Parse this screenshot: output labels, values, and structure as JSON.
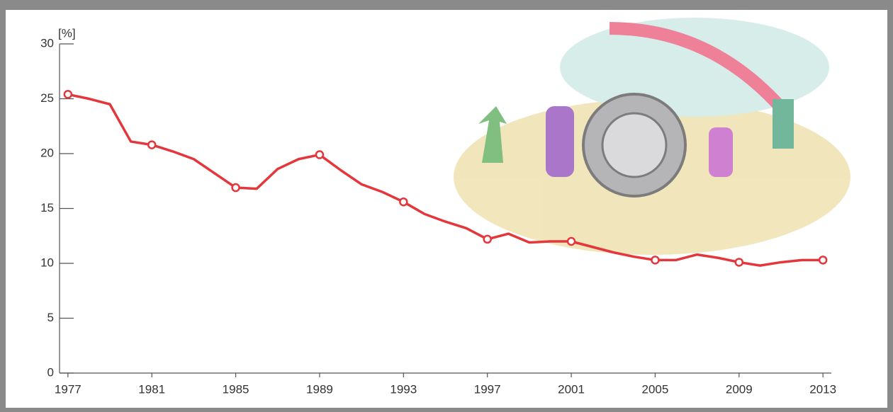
{
  "chart_data": {
    "type": "line",
    "y_label": "[%]",
    "x": [
      1977,
      1978,
      1979,
      1980,
      1981,
      1982,
      1983,
      1984,
      1985,
      1986,
      1987,
      1988,
      1989,
      1990,
      1991,
      1992,
      1993,
      1994,
      1995,
      1996,
      1997,
      1998,
      1999,
      2000,
      2001,
      2002,
      2003,
      2004,
      2005,
      2006,
      2007,
      2008,
      2009,
      2010,
      2011,
      2012,
      2013
    ],
    "values": [
      25.4,
      25.0,
      24.5,
      21.1,
      20.8,
      20.2,
      19.5,
      18.2,
      16.9,
      16.8,
      18.6,
      19.5,
      19.9,
      18.5,
      17.2,
      16.5,
      15.6,
      14.5,
      13.8,
      13.2,
      12.2,
      12.7,
      11.9,
      12.0,
      12.0,
      11.5,
      11.0,
      10.6,
      10.3,
      10.3,
      10.8,
      10.5,
      10.1,
      9.8,
      10.1,
      10.3,
      10.3
    ],
    "color": "#e4373b",
    "xlim": [
      1976.6,
      2013.4
    ],
    "xticks": [
      1977,
      1981,
      1985,
      1989,
      1993,
      1997,
      2001,
      2005,
      2009,
      2013
    ],
    "ylim": [
      0,
      30
    ],
    "yticks": [
      0,
      5,
      10,
      15,
      20,
      25,
      30
    ],
    "grid": false
  }
}
